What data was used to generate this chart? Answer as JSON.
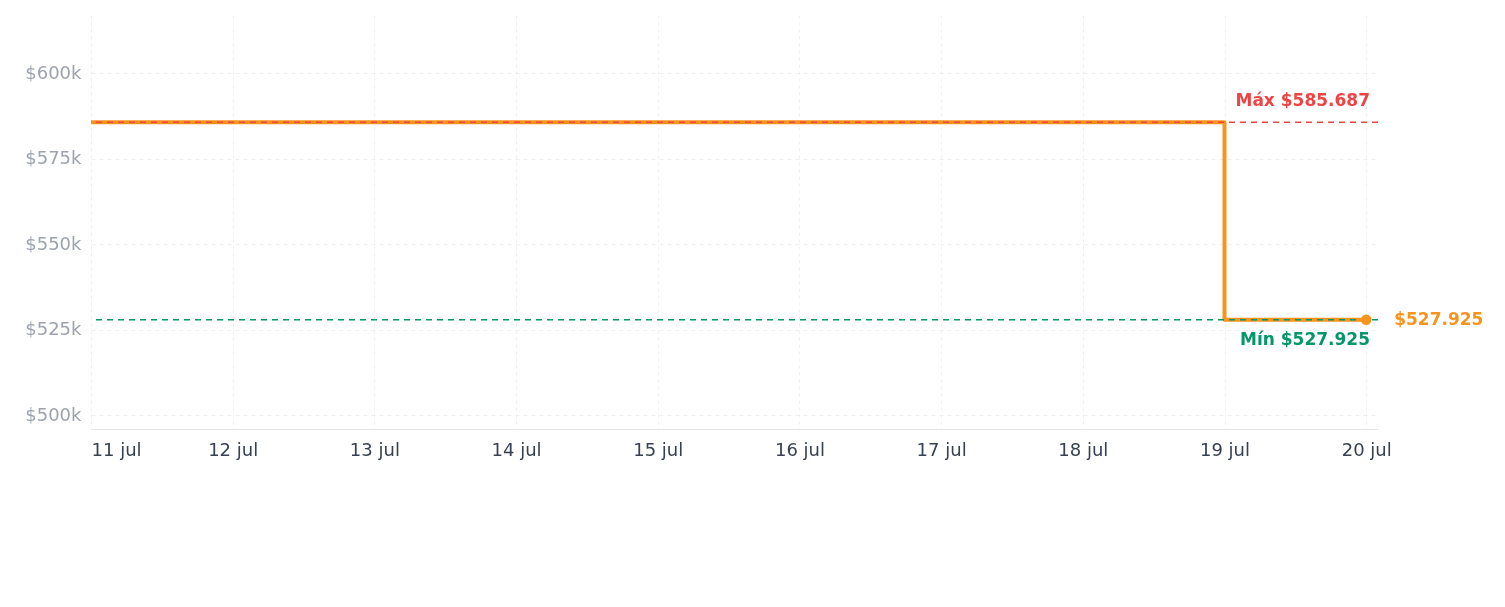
{
  "chart_data": {
    "type": "step",
    "x": [
      "--07-11",
      "--07-19",
      "--07-20"
    ],
    "series": [
      {
        "color": "#f7941d",
        "values": [
          585687,
          527925,
          527925
        ]
      }
    ],
    "xlim": [
      "--07-11",
      "--07-20T02:00"
    ],
    "xticks": [
      {
        "value": "--07-11",
        "label": "11 jul"
      },
      {
        "value": "--07-12",
        "label": "12 jul"
      },
      {
        "value": "--07-13",
        "label": "13 jul"
      },
      {
        "value": "--07-14",
        "label": "14 jul"
      },
      {
        "value": "--07-15",
        "label": "15 jul"
      },
      {
        "value": "--07-16",
        "label": "16 jul"
      },
      {
        "value": "--07-17",
        "label": "17 jul"
      },
      {
        "value": "--07-18",
        "label": "18 jul"
      },
      {
        "value": "--07-19",
        "label": "19 jul"
      },
      {
        "value": "--07-20",
        "label": "20 jul"
      }
    ],
    "ylim": [
      496000,
      617000
    ],
    "yticks": [
      {
        "value": 500000,
        "label": "$500k"
      },
      {
        "value": 525000,
        "label": "$525k"
      },
      {
        "value": 550000,
        "label": "$550k"
      },
      {
        "value": 575000,
        "label": "$575k"
      },
      {
        "value": 600000,
        "label": "$600k"
      }
    ],
    "ref_lines": [
      {
        "axis": "y",
        "value": 585687,
        "label": "Máx $585.687",
        "color": "#ef4444",
        "line_style": "dashed"
      },
      {
        "axis": "y",
        "value": 527925,
        "label": "Mín $527.925",
        "color": "#059669",
        "line_style": "dashed"
      }
    ],
    "annotations": [
      {
        "text": "$527.925",
        "x": "--07-20",
        "y": 527925
      }
    ],
    "grid": true,
    "line_style": "solid"
  }
}
